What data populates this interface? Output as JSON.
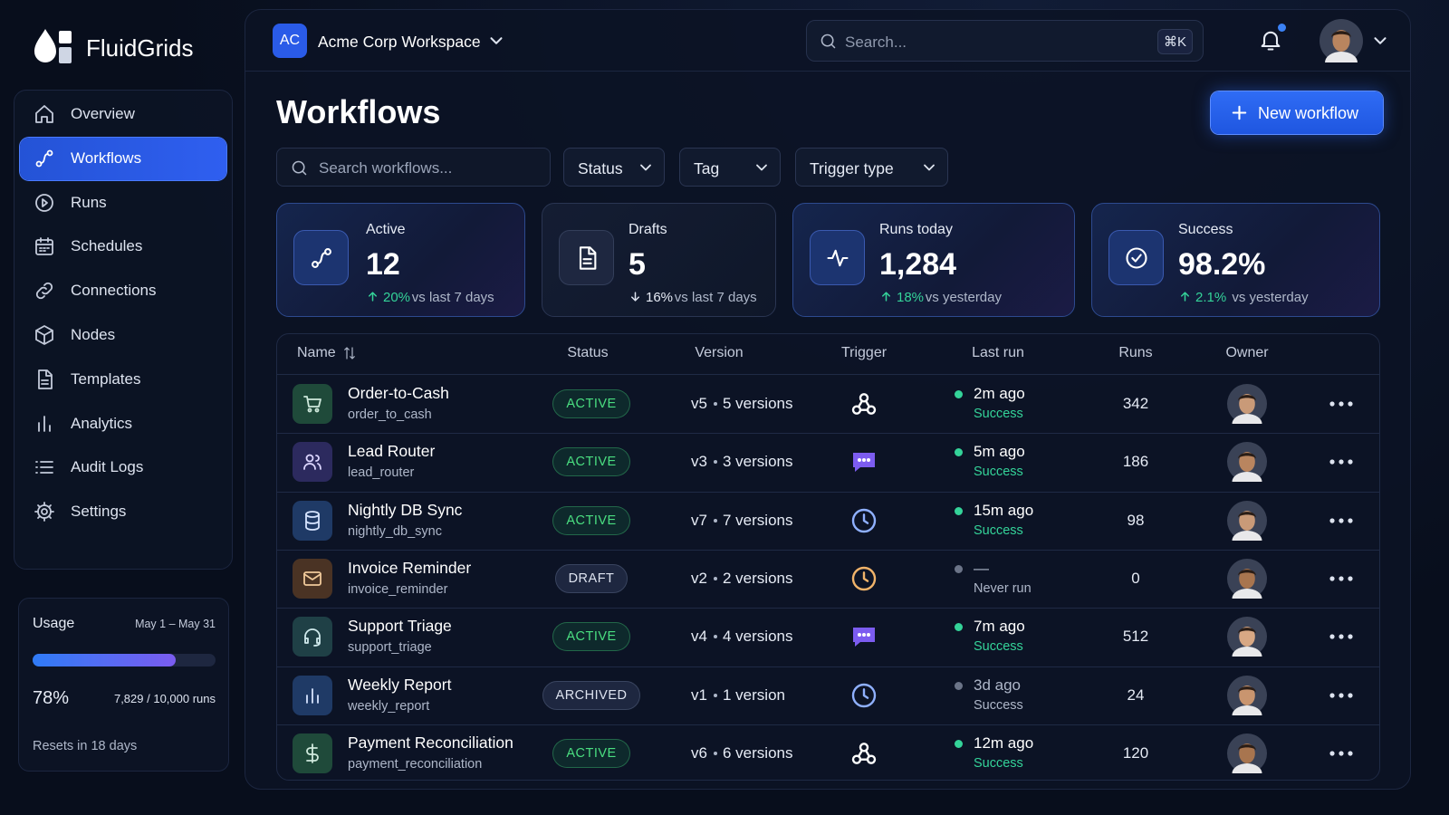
{
  "brand": "FluidGrids",
  "nav": [
    "Overview",
    "Workflows",
    "Runs",
    "Schedules",
    "Connections",
    "Nodes",
    "Templates",
    "Analytics",
    "Audit Logs",
    "Settings"
  ],
  "usage": {
    "title": "Usage",
    "period": "May 1 – May 31",
    "percent": {
      "value": 78,
      "label": "78%"
    },
    "runs": "7,829 / 10,000 runs",
    "reset": "Resets in 18 days"
  },
  "workspace": {
    "badge": "AC",
    "name": "Acme Corp Workspace"
  },
  "search": {
    "placeholder": "Search...",
    "shortcut": "⌘K"
  },
  "page": {
    "title": "Workflows",
    "new_button": "New workflow",
    "search_placeholder": "Search workflows...",
    "filters": [
      "Status",
      "Tag",
      "Trigger type"
    ]
  },
  "stats": [
    {
      "label": "Active",
      "value": "12",
      "change": "20%",
      "note": "vs last 7 days"
    },
    {
      "label": "Drafts",
      "value": "5",
      "change": "16%",
      "note": "vs last 7 days"
    },
    {
      "label": "Runs today",
      "value": "1,284",
      "change": "18%",
      "note": "vs yesterday"
    },
    {
      "label": "Success",
      "value": "98.2%",
      "change": "2.1%",
      "note": "vs yesterday"
    }
  ],
  "table": {
    "columns": [
      "Name",
      "Status",
      "Version",
      "Trigger",
      "Last run",
      "Runs",
      "Owner"
    ],
    "rows": [
      {
        "name": "Order-to-Cash",
        "id": "order_to_cash",
        "status": "ACTIVE",
        "version": "v5",
        "versions": "5 versions",
        "last_run": "2m ago",
        "result": "Success",
        "runs": 342
      },
      {
        "name": "Lead Router",
        "id": "lead_router",
        "status": "ACTIVE",
        "version": "v3",
        "versions": "3 versions",
        "last_run": "5m ago",
        "result": "Success",
        "runs": 186
      },
      {
        "name": "Nightly DB Sync",
        "id": "nightly_db_sync",
        "status": "ACTIVE",
        "version": "v7",
        "versions": "7 versions",
        "last_run": "15m ago",
        "result": "Success",
        "runs": 98
      },
      {
        "name": "Invoice Reminder",
        "id": "invoice_reminder",
        "status": "DRAFT",
        "version": "v2",
        "versions": "2 versions",
        "last_run": "—",
        "result": "Never run",
        "runs": 0
      },
      {
        "name": "Support Triage",
        "id": "support_triage",
        "status": "ACTIVE",
        "version": "v4",
        "versions": "4 versions",
        "last_run": "7m ago",
        "result": "Success",
        "runs": 512
      },
      {
        "name": "Weekly Report",
        "id": "weekly_report",
        "status": "ARCHIVED",
        "version": "v1",
        "versions": "1 version",
        "last_run": "3d ago",
        "result": "Success",
        "runs": 24
      },
      {
        "name": "Payment Reconciliation",
        "id": "payment_reconciliation",
        "status": "ACTIVE",
        "version": "v6",
        "versions": "6 versions",
        "last_run": "12m ago",
        "result": "Success",
        "runs": 120
      }
    ]
  }
}
